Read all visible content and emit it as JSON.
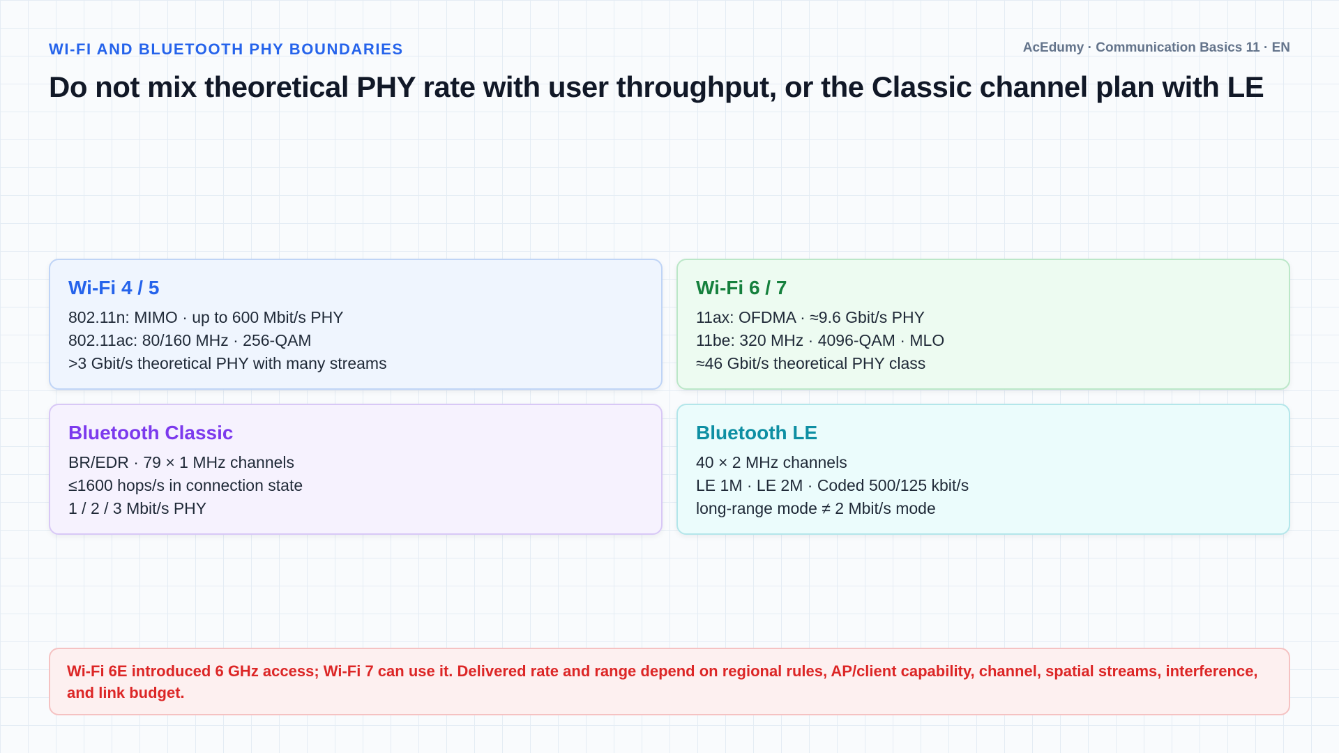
{
  "header": {
    "kicker": "WI-FI AND BLUETOOTH PHY BOUNDARIES",
    "meta": "AcEdumy · Communication Basics 11 · EN",
    "title": "Do not mix theoretical PHY rate with user throughput, or the Classic channel plan with LE"
  },
  "cards": [
    {
      "title": "Wi-Fi 4 / 5",
      "color": "#2563eb",
      "lines": [
        "802.11n: MIMO · up to 600 Mbit/s PHY",
        "802.11ac: 80/160 MHz · 256-QAM",
        ">3 Gbit/s theoretical PHY with many streams"
      ]
    },
    {
      "title": "Wi-Fi 6 / 7",
      "color": "#15803d",
      "lines": [
        "11ax: OFDMA · ≈9.6 Gbit/s PHY",
        "11be: 320 MHz · 4096-QAM · MLO",
        "≈46 Gbit/s theoretical PHY class"
      ]
    },
    {
      "title": "Bluetooth Classic",
      "color": "#7c3aed",
      "lines": [
        "BR/EDR · 79 × 1 MHz channels",
        "≤1600 hops/s in connection state",
        "1 / 2 / 3 Mbit/s PHY"
      ]
    },
    {
      "title": "Bluetooth LE",
      "color": "#0e8fa3",
      "lines": [
        "40 × 2 MHz channels",
        "LE 1M · LE 2M · Coded 500/125 kbit/s",
        "long-range mode ≠ 2 Mbit/s mode"
      ]
    }
  ],
  "note": {
    "text": "Wi-Fi 6E introduced 6 GHz access; Wi-Fi 7 can use it. Delivered rate and range depend on regional rules, AP/client capability, channel, spatial streams, interference, and link budget.",
    "color": "#dc2626"
  }
}
